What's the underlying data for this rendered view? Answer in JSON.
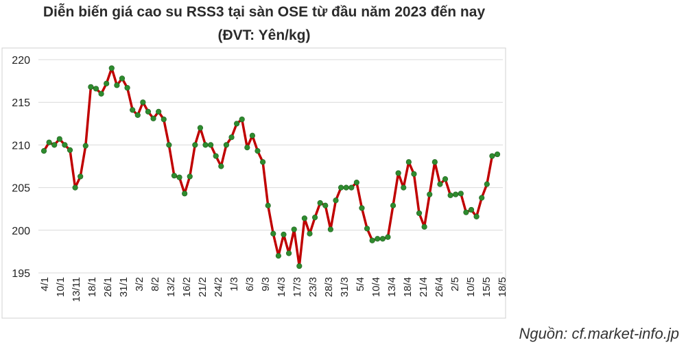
{
  "chart_data": {
    "type": "line",
    "title": "Diễn biến giá cao su RSS3 tại sàn OSE từ đầu năm 2023 đến nay",
    "subtitle": "(ĐVT: Yên/kg)",
    "ylim": [
      195,
      220
    ],
    "yticks": [
      "195",
      "200",
      "205",
      "210",
      "215",
      "220"
    ],
    "grid": true,
    "x_tick_labels": [
      "4/1",
      "10/1",
      "13/11",
      "18/1",
      "26/1",
      "31/1",
      "3/2",
      "8/2",
      "13/2",
      "16/2",
      "21/2",
      "24/2",
      "1/3",
      "6/3",
      "9/3",
      "14/3",
      "17/3",
      "23/3",
      "28/3",
      "31/3",
      "5/4",
      "10/4",
      "13/4",
      "18/4",
      "21/4",
      "26/4",
      "2/5",
      "10/5",
      "15/5",
      "18/5"
    ],
    "values": [
      209.3,
      210.3,
      210.0,
      210.7,
      210.0,
      209.4,
      205.0,
      206.3,
      209.9,
      216.8,
      216.6,
      216.0,
      217.2,
      219.0,
      217.0,
      217.8,
      216.7,
      214.1,
      213.5,
      215.0,
      213.9,
      213.1,
      213.9,
      213.0,
      210.0,
      206.4,
      206.2,
      204.3,
      206.3,
      210.0,
      212.0,
      210.0,
      210.0,
      208.7,
      207.5,
      210.0,
      210.9,
      212.5,
      213.0,
      209.7,
      211.1,
      209.3,
      208.0,
      202.9,
      199.6,
      197.0,
      199.5,
      197.3,
      200.1,
      195.8,
      201.4,
      199.6,
      201.5,
      203.2,
      202.9,
      200.1,
      203.5,
      205.0,
      205.0,
      205.0,
      205.6,
      202.6,
      200.2,
      198.8,
      199.0,
      199.0,
      199.2,
      202.9,
      206.7,
      205.0,
      208.0,
      206.6,
      202.0,
      200.4,
      204.2,
      208.0,
      205.4,
      206.0,
      204.1,
      204.2,
      204.3,
      202.1,
      202.4,
      201.6,
      203.8,
      205.4,
      208.7,
      208.9
    ],
    "line_color": "#c00000",
    "marker_color": "#2e8b2e",
    "source": "Nguồn: cf.market-info.jp"
  }
}
